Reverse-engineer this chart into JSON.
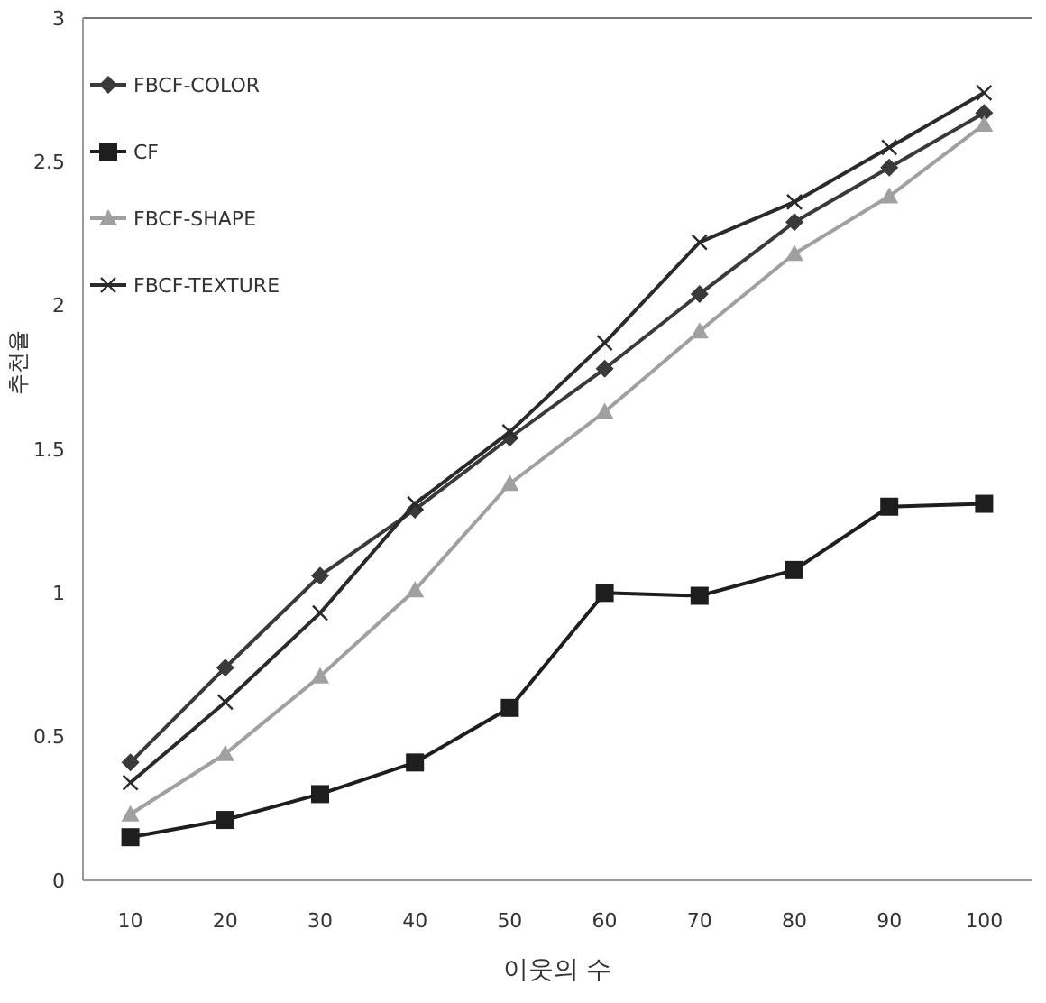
{
  "chart_data": {
    "type": "line",
    "xlabel": "이웃의 수",
    "ylabel": "추천율",
    "categories": [
      "10",
      "20",
      "30",
      "40",
      "50",
      "60",
      "70",
      "80",
      "90",
      "100"
    ],
    "ylim": [
      0,
      3
    ],
    "yticks": [
      0,
      0.5,
      1,
      1.5,
      2,
      2.5,
      3
    ],
    "grid": false,
    "legend": "top left",
    "series": [
      {
        "name": "FBCF-COLOR",
        "color": "#3a3a3a",
        "marker": "diamond",
        "values": [
          0.41,
          0.74,
          1.06,
          1.29,
          1.54,
          1.78,
          2.04,
          2.29,
          2.48,
          2.67
        ]
      },
      {
        "name": "CF",
        "color": "#1e1e1e",
        "marker": "square",
        "values": [
          0.15,
          0.21,
          0.3,
          0.41,
          0.6,
          1.0,
          0.99,
          1.08,
          1.3,
          1.31
        ]
      },
      {
        "name": "FBCF-SHAPE",
        "color": "#a0a0a0",
        "marker": "triangle",
        "values": [
          0.23,
          0.44,
          0.71,
          1.01,
          1.38,
          1.63,
          1.91,
          2.18,
          2.38,
          2.63
        ]
      },
      {
        "name": "FBCF-TEXTURE",
        "color": "#2a2a2a",
        "marker": "cross",
        "values": [
          0.34,
          0.62,
          0.93,
          1.31,
          1.56,
          1.87,
          2.22,
          2.36,
          2.55,
          2.74
        ]
      }
    ]
  }
}
